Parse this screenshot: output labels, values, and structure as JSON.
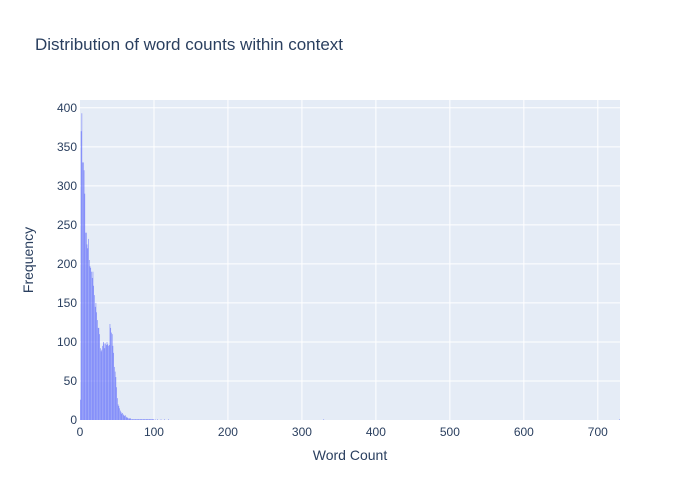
{
  "chart_data": {
    "type": "bar",
    "title": "Distribution of word counts within context",
    "xlabel": "Word Count",
    "ylabel": "Frequency",
    "xlim": [
      0,
      730
    ],
    "ylim": [
      0,
      410
    ],
    "xticks": [
      0,
      100,
      200,
      300,
      400,
      500,
      600,
      700
    ],
    "yticks": [
      0,
      50,
      100,
      150,
      200,
      250,
      300,
      350,
      400
    ],
    "grid": true,
    "bar_color": "#636efa",
    "plot_bg": "#e5ecf6",
    "x": [
      1,
      2,
      3,
      4,
      5,
      6,
      7,
      8,
      9,
      10,
      11,
      12,
      13,
      14,
      15,
      16,
      17,
      18,
      19,
      20,
      21,
      22,
      23,
      24,
      25,
      26,
      27,
      28,
      29,
      30,
      31,
      32,
      33,
      34,
      35,
      36,
      37,
      38,
      39,
      40,
      41,
      42,
      43,
      44,
      45,
      46,
      47,
      48,
      49,
      50,
      51,
      52,
      53,
      54,
      55,
      56,
      57,
      58,
      59,
      60,
      61,
      62,
      63,
      64,
      65,
      66,
      67,
      68,
      69,
      70,
      71,
      72,
      73,
      74,
      75,
      76,
      77,
      78,
      79,
      80,
      81,
      82,
      83,
      84,
      85,
      86,
      87,
      88,
      89,
      90,
      91,
      92,
      93,
      94,
      95,
      96,
      97,
      98,
      99,
      100,
      102,
      105,
      110,
      115,
      120,
      330,
      730
    ],
    "values": [
      26,
      370,
      393,
      330,
      330,
      320,
      290,
      240,
      240,
      225,
      220,
      232,
      205,
      197,
      195,
      190,
      182,
      190,
      172,
      160,
      145,
      150,
      138,
      128,
      118,
      118,
      110,
      92,
      88,
      90,
      95,
      100,
      98,
      92,
      98,
      96,
      100,
      97,
      95,
      96,
      123,
      118,
      112,
      110,
      95,
      86,
      68,
      62,
      55,
      42,
      28,
      20,
      18,
      15,
      12,
      10,
      8,
      9,
      7,
      6,
      5,
      6,
      4,
      3,
      3,
      2,
      2,
      2,
      2,
      1,
      1,
      1,
      1,
      1,
      1,
      1,
      1,
      1,
      1,
      1,
      1,
      1,
      1,
      1,
      1,
      1,
      1,
      1,
      1,
      1,
      1,
      1,
      1,
      1,
      1,
      1,
      1,
      1,
      1,
      1,
      1,
      1,
      1,
      1,
      1,
      1,
      1
    ]
  }
}
